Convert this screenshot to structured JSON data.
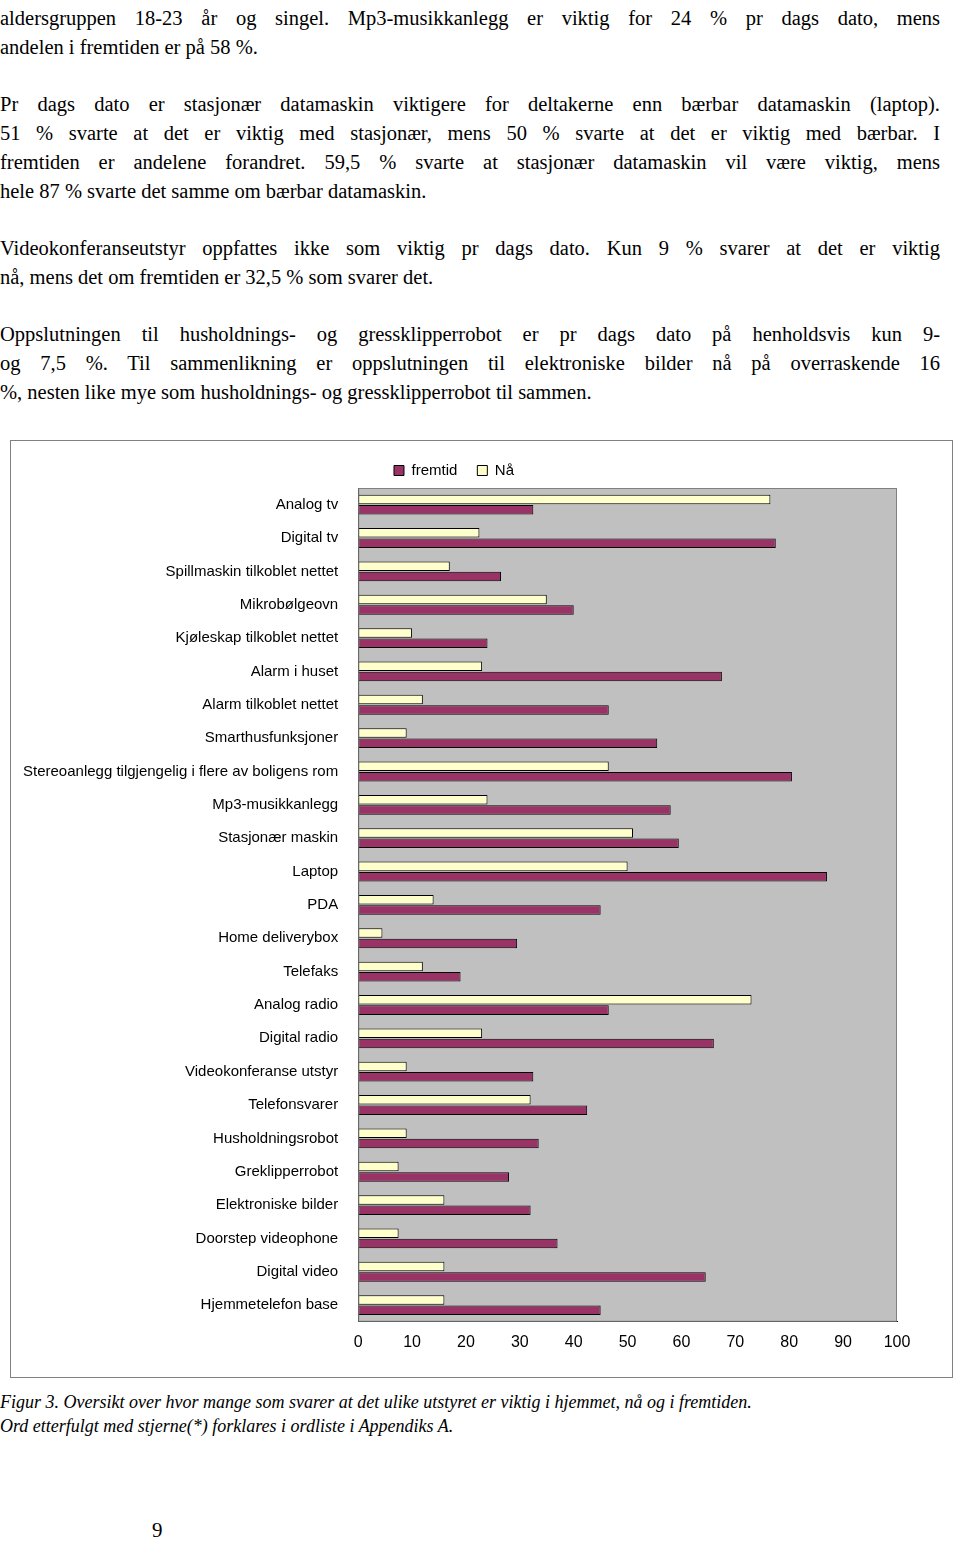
{
  "paragraphs": [
    [
      "aldersgruppen 18-23 år og singel. Mp3-musikkanlegg er viktig for 24 % pr dags dato, mens",
      "andelen i fremtiden er på 58 %."
    ],
    [
      "Pr dags dato er stasjonær datamaskin viktigere for deltakerne enn bærbar datamaskin (laptop).",
      "51 % svarte at det er viktig med stasjonær, mens 50 % svarte at det er viktig med bærbar. I",
      "fremtiden er andelene forandret. 59,5 % svarte at stasjonær datamaskin vil være viktig, mens",
      "hele 87 % svarte det samme om bærbar datamaskin."
    ],
    [
      "Videokonferanseutstyr oppfattes ikke som viktig pr dags dato. Kun 9 % svarer at det er viktig",
      "nå, mens det om fremtiden er 32,5 % som svarer det."
    ],
    [
      "Oppslutningen til husholdnings- og gressklipperrobot er pr dags dato på henholdsvis kun 9-",
      "og 7,5 %. Til sammenlikning er oppslutningen til elektroniske bilder nå på overraskende 16",
      "%, nesten like mye som husholdnings- og gressklipperrobot til sammen."
    ]
  ],
  "chart_data": {
    "type": "bar",
    "orientation": "horizontal",
    "categories": [
      "Analog tv",
      "Digital tv",
      "Spillmaskin tilkoblet nettet",
      "Mikrobølgeovn",
      "Kjøleskap tilkoblet nettet",
      "Alarm i huset",
      "Alarm tilkoblet nettet",
      "Smarthusfunksjoner",
      "Stereoanlegg tilgjengelig i flere av boligens rom",
      "Mp3-musikkanlegg",
      "Stasjonær maskin",
      "Laptop",
      "PDA",
      "Home deliverybox",
      "Telefaks",
      "Analog radio",
      "Digital radio",
      "Videokonferanse utstyr",
      "Telefonsvarer",
      "Husholdningsrobot",
      "Greklipperrobot",
      "Elektroniske bilder",
      "Doorstep videophone",
      "Digital video",
      "Hjemmetelefon base"
    ],
    "series": [
      {
        "name": "fremtid",
        "color": "#993366",
        "values": [
          32.5,
          77.5,
          26.5,
          40,
          24,
          67.5,
          46.5,
          55.5,
          80.5,
          58,
          59.5,
          87,
          45,
          29.5,
          19,
          46.5,
          66,
          32.5,
          42.5,
          33.5,
          28,
          32,
          37,
          64.5,
          45
        ]
      },
      {
        "name": "Nå",
        "color": "#ffffcc",
        "values": [
          76.5,
          22.5,
          17,
          35,
          10,
          23,
          12,
          9,
          46.5,
          24,
          51,
          50,
          14,
          4.5,
          12,
          73,
          23,
          9,
          32,
          9,
          7.5,
          16,
          7.5,
          16,
          16
        ]
      }
    ],
    "xlim": [
      0,
      100
    ],
    "xticks": [
      0,
      10,
      20,
      30,
      40,
      50,
      60,
      70,
      80,
      90,
      100
    ],
    "grid": false,
    "legend": "top"
  },
  "caption": [
    "Figur 3. Oversikt over hvor mange som svarer at det ulike utstyret er viktig i hjemmet, nå og i fremtiden.",
    "Ord etterfulgt med stjerne(*) forklares i ordliste i Appendiks A."
  ],
  "page_number": "9"
}
